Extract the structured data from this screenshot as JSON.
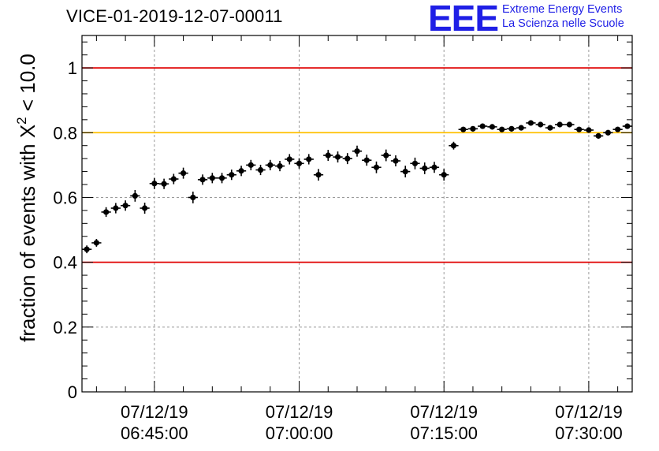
{
  "header": {
    "title": "VICE-01-2019-12-07-00011",
    "logo_text": "EEE",
    "logo_line1": "Extreme Energy Events",
    "logo_line2": "La Scienza nelle Scuole"
  },
  "colors": {
    "red_line": "#e00000",
    "yellow_line": "#ffc000",
    "brand_blue": "#1f1fe6",
    "marker": "#000000"
  },
  "chart_data": {
    "type": "scatter",
    "title": "VICE-01-2019-12-07-00011",
    "xlabel": "",
    "ylabel_prefix": "fraction of events with ",
    "ylabel_symbol": "X",
    "ylabel_sup": "2",
    "ylabel_suffix": " < 10.0",
    "ylim": [
      0,
      1.1
    ],
    "yticks": [
      0,
      0.2,
      0.4,
      0.6,
      0.8,
      1
    ],
    "ytick_labels": [
      "0",
      "0.2",
      "0.4",
      "0.6",
      "0.8",
      "1"
    ],
    "x_unit": "minutes after 06:37:30",
    "xlim": [
      0,
      57
    ],
    "xticks": [
      7.5,
      22.5,
      37.5,
      52.5
    ],
    "xtick_labels": [
      [
        "07/12/19",
        "06:45:00"
      ],
      [
        "07/12/19",
        "07:00:00"
      ],
      [
        "07/12/19",
        "07:15:00"
      ],
      [
        "07/12/19",
        "07:30:00"
      ]
    ],
    "reference_lines": [
      {
        "y": 1.0,
        "color": "red"
      },
      {
        "y": 0.8,
        "color": "yellow"
      },
      {
        "y": 0.4,
        "color": "red"
      }
    ],
    "series": [
      {
        "name": "fraction",
        "x": [
          0.5,
          1.5,
          2.5,
          3.5,
          4.5,
          5.5,
          6.5,
          7.5,
          8.5,
          9.5,
          10.5,
          11.5,
          12.5,
          13.5,
          14.5,
          15.5,
          16.5,
          17.5,
          18.5,
          19.5,
          20.5,
          21.5,
          22.5,
          23.5,
          24.5,
          25.5,
          26.5,
          27.5,
          28.5,
          29.5,
          30.5,
          31.5,
          32.5,
          33.5,
          34.5,
          35.5,
          36.5,
          37.5,
          38.5,
          39.5,
          40.5,
          41.5,
          42.5,
          43.5,
          44.5,
          45.5,
          46.5,
          47.5,
          48.5,
          49.5,
          50.5,
          51.5,
          52.5,
          53.5,
          54.5,
          55.5,
          56.5
        ],
        "y": [
          0.44,
          0.46,
          0.555,
          0.567,
          0.575,
          0.605,
          0.567,
          0.643,
          0.642,
          0.657,
          0.675,
          0.6,
          0.655,
          0.66,
          0.66,
          0.67,
          0.682,
          0.7,
          0.685,
          0.7,
          0.697,
          0.718,
          0.705,
          0.718,
          0.67,
          0.73,
          0.725,
          0.72,
          0.743,
          0.715,
          0.693,
          0.73,
          0.713,
          0.68,
          0.705,
          0.69,
          0.693,
          0.67,
          0.76,
          0.81,
          0.812,
          0.82,
          0.818,
          0.81,
          0.812,
          0.815,
          0.83,
          0.825,
          0.815,
          0.825,
          0.825,
          0.81,
          0.808,
          0.79,
          0.8,
          0.81,
          0.82
        ],
        "yerr": [
          0.012,
          0.012,
          0.015,
          0.016,
          0.016,
          0.018,
          0.017,
          0.017,
          0.016,
          0.016,
          0.017,
          0.018,
          0.016,
          0.016,
          0.016,
          0.016,
          0.016,
          0.016,
          0.016,
          0.016,
          0.016,
          0.016,
          0.016,
          0.016,
          0.018,
          0.017,
          0.017,
          0.017,
          0.017,
          0.017,
          0.018,
          0.018,
          0.017,
          0.018,
          0.018,
          0.018,
          0.017,
          0.018,
          0.012,
          0.008,
          0.008,
          0.008,
          0.008,
          0.008,
          0.008,
          0.008,
          0.008,
          0.008,
          0.008,
          0.008,
          0.008,
          0.008,
          0.008,
          0.008,
          0.008,
          0.008,
          0.008
        ]
      }
    ]
  }
}
